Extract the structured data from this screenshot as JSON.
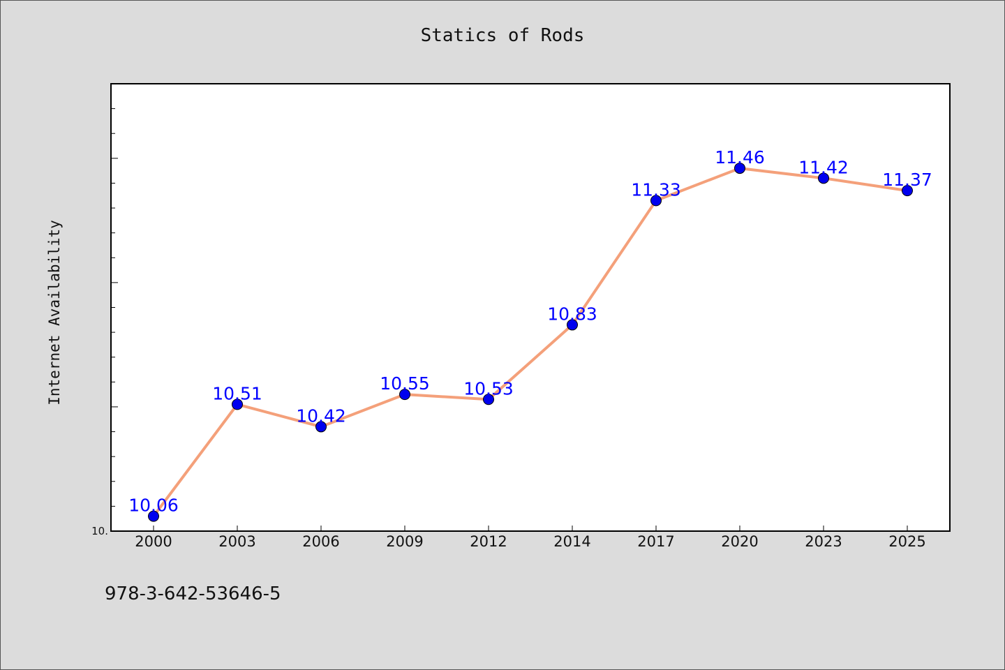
{
  "chart_data": {
    "type": "line",
    "title": "Statics of Rods",
    "xlabel": "",
    "ylabel": "Internet Availability",
    "categories": [
      "2000",
      "2003",
      "2006",
      "2009",
      "2012",
      "2014",
      "2017",
      "2020",
      "2023",
      "2025"
    ],
    "series": [
      {
        "values": [
          10.06,
          10.51,
          10.42,
          10.55,
          10.53,
          10.83,
          11.33,
          11.46,
          11.42,
          11.37
        ],
        "labels": [
          "10.06",
          "10.51",
          "10.42",
          "10.55",
          "10.53",
          "10.83",
          "11.33",
          "11.46",
          "11.42",
          "11.37"
        ]
      }
    ],
    "ylim": [
      10.0,
      11.8
    ],
    "ytick_label": "10.",
    "grid": false,
    "colors": {
      "line": "#f4a07a",
      "marker": "#0000ee",
      "data_label": "#0000ff",
      "background": "#dcdcdc",
      "plot_area": "#ffffff"
    }
  },
  "footer": {
    "text": "978-3-642-53646-5"
  }
}
